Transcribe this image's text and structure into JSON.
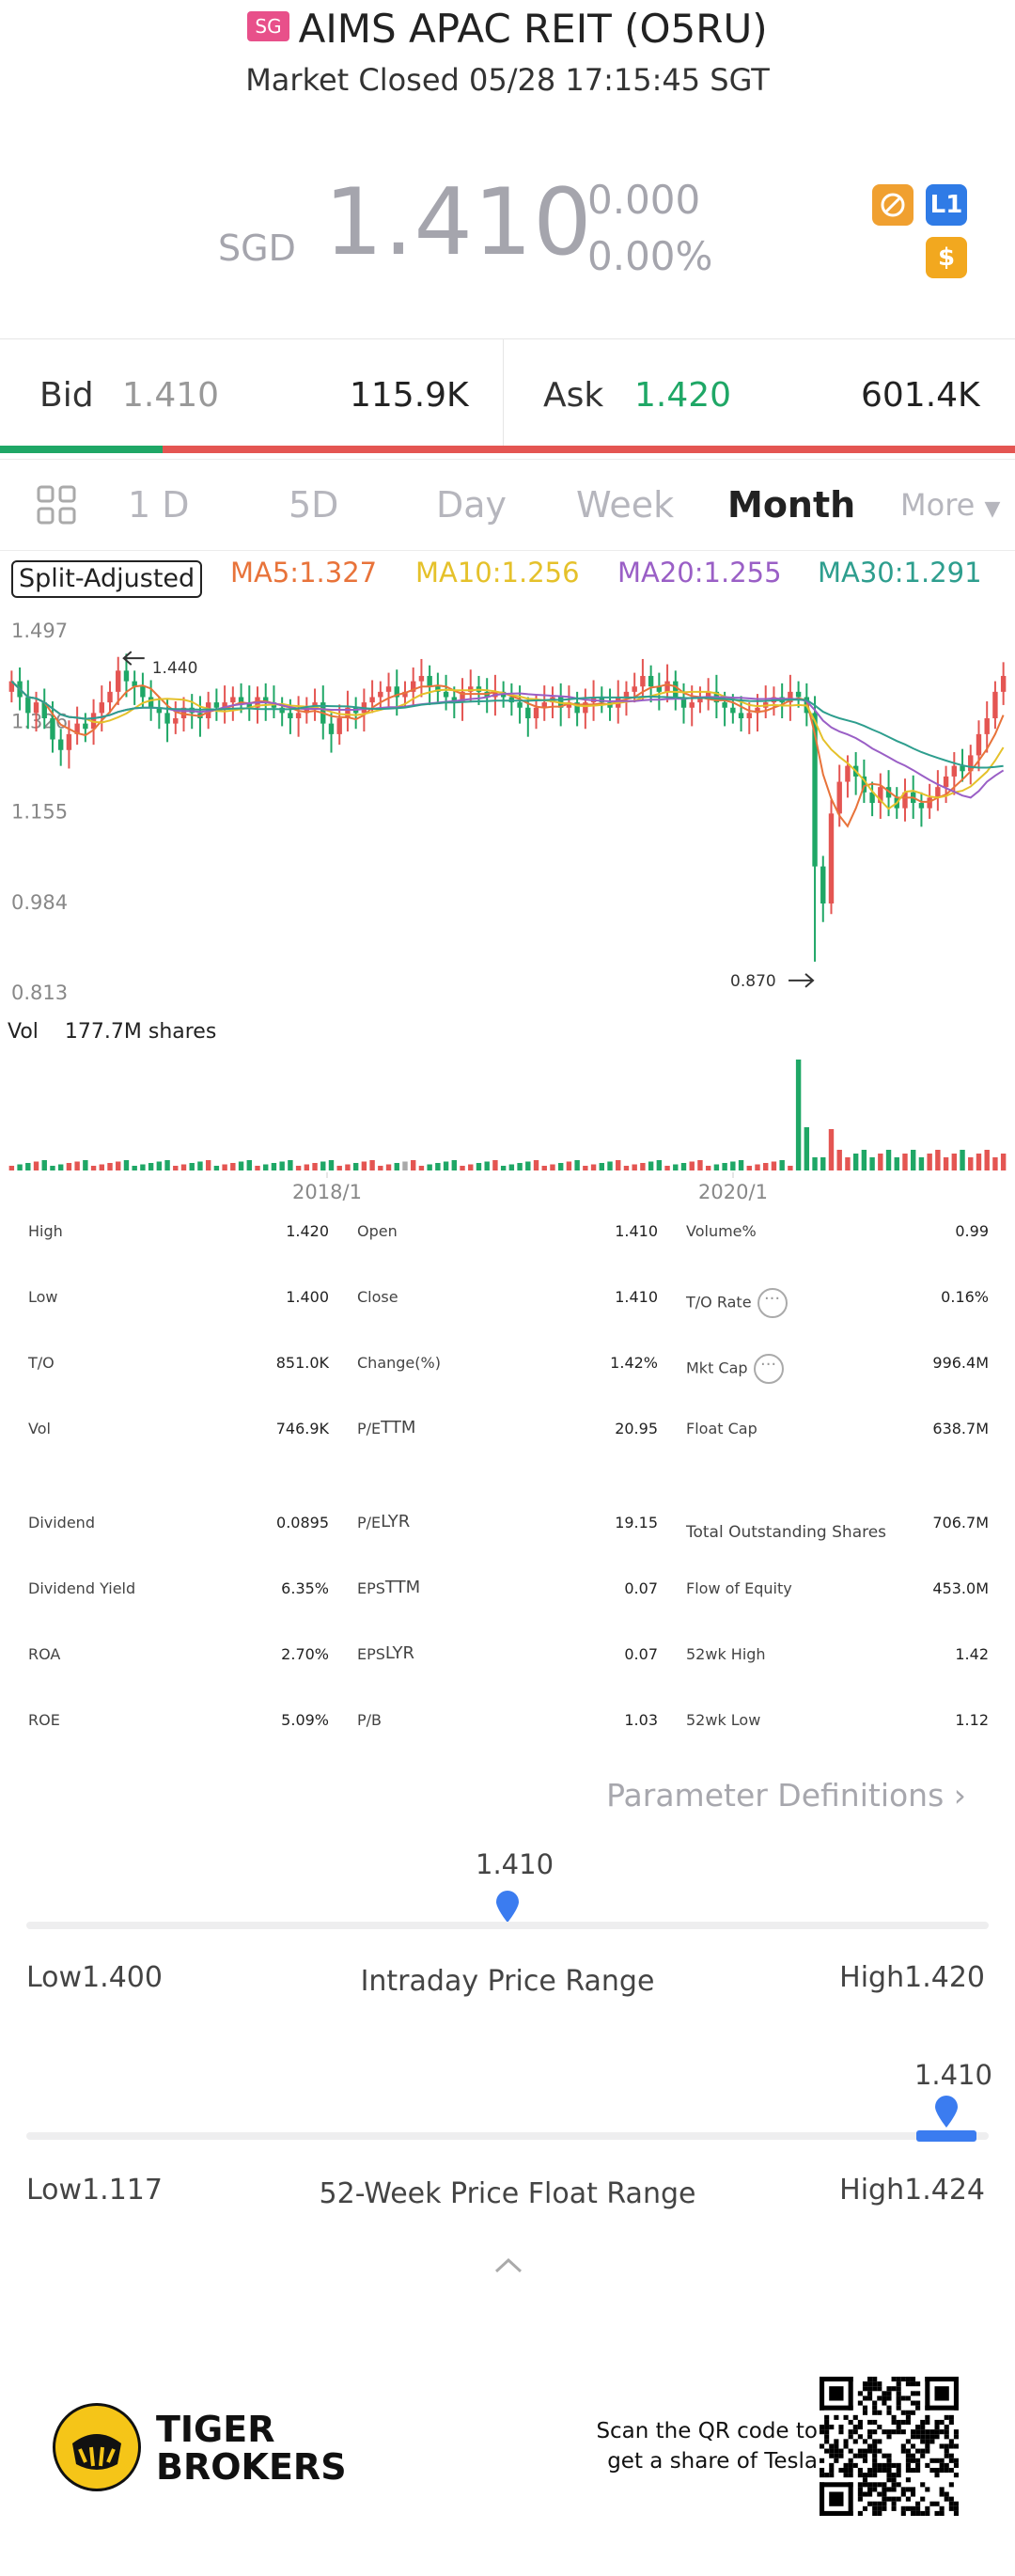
{
  "header": {
    "market_badge": "SG",
    "title": "AIMS APAC REIT (O5RU)",
    "status": "Market Closed 05/28 17:15:45 SGT"
  },
  "quote": {
    "currency": "SGD",
    "price": "1.410",
    "change": "0.000",
    "change_pct": "0.00%",
    "icons": [
      "no-trade-icon",
      "level-1-icon",
      "dollar-icon"
    ]
  },
  "bidask": {
    "bid_label": "Bid",
    "bid_price": "1.410",
    "bid_size": "115.9K",
    "ask_label": "Ask",
    "ask_price": "1.420",
    "ask_size": "601.4K",
    "bid_share": 0.16
  },
  "tabs": {
    "items": [
      "1 D",
      "5D",
      "Day",
      "Week",
      "Month",
      "More"
    ],
    "active": "Month"
  },
  "indicators": {
    "adjust_label": "Split-Adjusted",
    "ma5": "MA5:1.327",
    "ma10": "MA10:1.256",
    "ma20": "MA20:1.255",
    "ma30": "MA30:1.291",
    "colors": {
      "ma5": "#e8733a",
      "ma10": "#e5c12a",
      "ma20": "#9a5fc6",
      "ma30": "#2e9e8e"
    }
  },
  "chart_data": {
    "type": "candlestick",
    "y_ticks": [
      "1.497",
      "1.326",
      "1.155",
      "0.984",
      "0.813"
    ],
    "ylim": [
      0.813,
      1.497
    ],
    "x_ticks": [
      "2018/1",
      "2020/1"
    ],
    "high_marker": "1.440",
    "low_marker": "0.870",
    "volume_label": "Vol",
    "volume_value": "177.7M shares",
    "close_series": [
      1.4,
      1.37,
      1.34,
      1.36,
      1.33,
      1.29,
      1.27,
      1.3,
      1.32,
      1.31,
      1.34,
      1.36,
      1.38,
      1.42,
      1.4,
      1.39,
      1.37,
      1.35,
      1.34,
      1.32,
      1.33,
      1.35,
      1.34,
      1.33,
      1.36,
      1.35,
      1.36,
      1.37,
      1.36,
      1.35,
      1.37,
      1.36,
      1.35,
      1.34,
      1.33,
      1.34,
      1.35,
      1.36,
      1.32,
      1.3,
      1.33,
      1.35,
      1.34,
      1.36,
      1.37,
      1.38,
      1.39,
      1.37,
      1.38,
      1.4,
      1.41,
      1.39,
      1.38,
      1.37,
      1.36,
      1.38,
      1.39,
      1.38,
      1.37,
      1.38,
      1.37,
      1.36,
      1.35,
      1.33,
      1.35,
      1.36,
      1.37,
      1.35,
      1.36,
      1.34,
      1.36,
      1.37,
      1.36,
      1.35,
      1.37,
      1.38,
      1.39,
      1.41,
      1.39,
      1.38,
      1.4,
      1.37,
      1.35,
      1.36,
      1.37,
      1.38,
      1.36,
      1.35,
      1.34,
      1.33,
      1.34,
      1.35,
      1.36,
      1.37,
      1.36,
      1.38,
      1.37,
      1.34,
      1.05,
      0.98,
      1.15,
      1.21,
      1.24,
      1.22,
      1.19,
      1.17,
      1.2,
      1.18,
      1.16,
      1.19,
      1.17,
      1.16,
      1.18,
      1.2,
      1.22,
      1.24,
      1.23,
      1.26,
      1.3,
      1.33,
      1.38,
      1.41
    ]
  },
  "stats": {
    "col1": [
      {
        "label": "High",
        "value": "1.420"
      },
      {
        "label": "Low",
        "value": "1.400"
      },
      {
        "label": "T/O",
        "value": "851.0K"
      },
      {
        "label": "Vol",
        "value": "746.9K"
      },
      {
        "label": "Dividend",
        "value": "0.0895"
      },
      {
        "label": "Dividend Yield",
        "value": "6.35%"
      },
      {
        "label": "ROA",
        "value": "2.70%"
      },
      {
        "label": "ROE",
        "value": "5.09%"
      }
    ],
    "col2": [
      {
        "label": "Open",
        "value": "1.410"
      },
      {
        "label": "Close",
        "value": "1.410"
      },
      {
        "label": "Change(%)",
        "value": "1.42%"
      },
      {
        "label": "P/E",
        "sup": "TTM",
        "value": "20.95"
      },
      {
        "label": "P/E",
        "sup": "LYR",
        "value": "19.15"
      },
      {
        "label": "EPS",
        "sup": "TTM",
        "value": "0.07"
      },
      {
        "label": "EPS",
        "sup": "LYR",
        "value": "0.07"
      },
      {
        "label": "P/B",
        "value": "1.03"
      }
    ],
    "col3": [
      {
        "label": "Volume%",
        "value": "0.99"
      },
      {
        "label": "T/O Rate",
        "value": "0.16%"
      },
      {
        "label": "Mkt Cap",
        "value": "996.4M"
      },
      {
        "label": "Float Cap",
        "value": "638.7M"
      },
      {
        "label": "Total Outstanding Shares",
        "value": "706.7M"
      },
      {
        "label": "Flow of Equity",
        "value": "453.0M"
      },
      {
        "label": "52wk High",
        "value": "1.42"
      },
      {
        "label": "52wk Low",
        "value": "1.12"
      }
    ]
  },
  "param_link": "Parameter Definitions",
  "intraday": {
    "current": "1.410",
    "low": "Low1.400",
    "title": "Intraday Price Range",
    "high": "High1.420",
    "position": 0.5
  },
  "week52": {
    "current": "1.410",
    "low": "Low1.117",
    "title": "52-Week Price Float Range",
    "high": "High1.424",
    "position": 0.956
  },
  "footer": {
    "brand_line1": "TIGER",
    "brand_line2": "BROKERS",
    "qr_line1": "Scan the QR code to",
    "qr_line2": "get a share of Tesla"
  }
}
